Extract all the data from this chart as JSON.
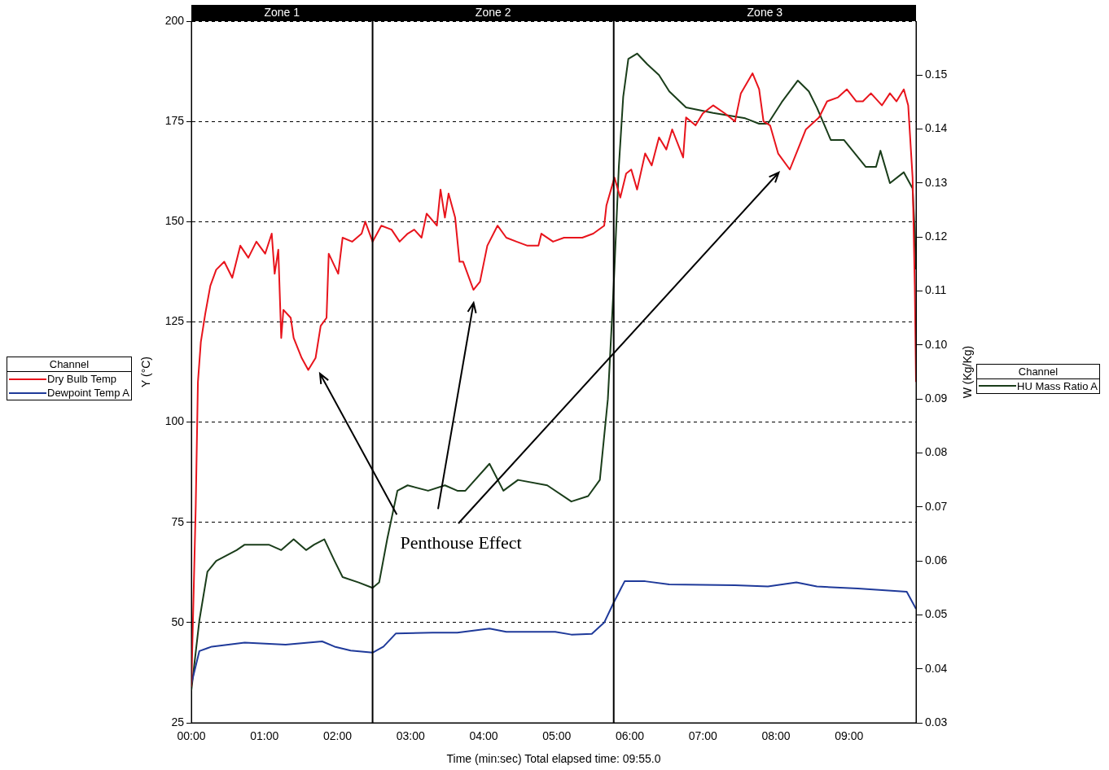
{
  "chart_data": {
    "type": "line",
    "xlabel": "Time (min:sec) Total elapsed time: 09:55.0",
    "ylabel": "Y (°C)",
    "y2label": "W (Kg/Kg)",
    "legend_title": "Channel",
    "legend": "left",
    "marker": "none",
    "grid": "y",
    "xlim": [
      0,
      9.917
    ],
    "xticks": [
      {
        "value": 0,
        "label": "00:00"
      },
      {
        "value": 1,
        "label": "01:00"
      },
      {
        "value": 2,
        "label": "02:00"
      },
      {
        "value": 3,
        "label": "03:00"
      },
      {
        "value": 4,
        "label": "04:00"
      },
      {
        "value": 5,
        "label": "05:00"
      },
      {
        "value": 6,
        "label": "06:00"
      },
      {
        "value": 7,
        "label": "07:00"
      },
      {
        "value": 8,
        "label": "08:00"
      },
      {
        "value": 9,
        "label": "09:00"
      }
    ],
    "ylim": [
      25,
      200
    ],
    "yticks": [
      25,
      50,
      75,
      100,
      125,
      150,
      175,
      200
    ],
    "y2lim": [
      0.03,
      0.16
    ],
    "y2ticks": [
      {
        "value": 0.03,
        "label": "0.03"
      },
      {
        "value": 0.04,
        "label": "0.04"
      },
      {
        "value": 0.05,
        "label": "0.05"
      },
      {
        "value": 0.06,
        "label": "0.06"
      },
      {
        "value": 0.07,
        "label": "0.07"
      },
      {
        "value": 0.08,
        "label": "0.08"
      },
      {
        "value": 0.09,
        "label": "0.09"
      },
      {
        "value": 0.1,
        "label": "0.10"
      },
      {
        "value": 0.11,
        "label": "0.11"
      },
      {
        "value": 0.12,
        "label": "0.12"
      },
      {
        "value": 0.13,
        "label": "0.13"
      },
      {
        "value": 0.14,
        "label": "0.14"
      },
      {
        "value": 0.15,
        "label": "0.15"
      }
    ],
    "ref_lines": [
      {
        "axis": "x",
        "value": 2.48,
        "color": "#000000"
      },
      {
        "axis": "x",
        "value": 5.78,
        "color": "#000000"
      }
    ],
    "annotations": [
      "Zone 1",
      "Zone 2",
      "Zone 3",
      "Penthouse Effect"
    ],
    "series": [
      {
        "name": "Dry Bulb Temp",
        "color": "#e8141c",
        "x": [
          0,
          0.06,
          0.09,
          0.13,
          0.19,
          0.26,
          0.34,
          0.45,
          0.56,
          0.67,
          0.78,
          0.89,
          1.01,
          1.1,
          1.14,
          1.19,
          1.23,
          1.26,
          1.36,
          1.4,
          1.51,
          1.6,
          1.7,
          1.77,
          1.85,
          1.88,
          2.01,
          2.07,
          2.2,
          2.33,
          2.38,
          2.48,
          2.6,
          2.74,
          2.85,
          2.96,
          3.05,
          3.15,
          3.22,
          3.36,
          3.41,
          3.47,
          3.52,
          3.61,
          3.67,
          3.72,
          3.86,
          3.95,
          4.05,
          4.19,
          4.31,
          4.45,
          4.6,
          4.75,
          4.79,
          4.95,
          5.1,
          5.35,
          5.5,
          5.65,
          5.68,
          5.79,
          5.87,
          5.95,
          6.02,
          6.1,
          6.21,
          6.3,
          6.4,
          6.5,
          6.58,
          6.73,
          6.77,
          6.9,
          7.0,
          7.14,
          7.3,
          7.44,
          7.52,
          7.68,
          7.77,
          7.83,
          7.92,
          8.03,
          8.19,
          8.3,
          8.41,
          8.59,
          8.7,
          8.85,
          8.97,
          9.1,
          9.19,
          9.3,
          9.45,
          9.56,
          9.65,
          9.75,
          9.81,
          9.87,
          9.9,
          9.917
        ],
        "values": [
          34,
          79,
          110,
          120,
          127,
          134,
          138,
          140,
          136,
          144,
          141,
          145,
          142,
          147,
          137,
          143,
          121,
          128,
          126,
          121,
          116,
          113,
          116,
          124,
          126,
          142,
          137,
          146,
          145,
          147,
          150,
          145,
          149,
          148,
          145,
          147,
          148,
          146,
          152,
          149,
          158,
          151,
          157,
          151,
          140,
          140,
          133,
          135,
          144,
          149,
          146,
          145,
          144,
          144,
          147,
          145,
          146,
          146,
          147,
          149,
          154,
          161,
          156,
          162,
          163,
          158,
          167,
          164,
          171,
          168,
          173,
          166,
          176,
          174,
          177,
          179,
          177,
          175,
          182,
          187,
          183,
          175,
          174,
          167,
          163,
          168,
          173,
          176,
          180,
          181,
          183,
          180,
          180,
          182,
          179,
          182,
          180,
          183,
          179,
          161,
          134,
          110
        ]
      },
      {
        "name": "Dewpoint Temp A",
        "color": "#1f3a9a",
        "x": [
          0,
          0.11,
          0.28,
          0.73,
          1.29,
          1.79,
          1.96,
          2.18,
          2.48,
          2.63,
          2.8,
          3.3,
          3.64,
          4.08,
          4.31,
          4.98,
          5.2,
          5.48,
          5.65,
          5.78,
          5.93,
          6.21,
          6.54,
          7.44,
          7.89,
          8.28,
          8.56,
          9.12,
          9.79,
          9.917
        ],
        "values": [
          34.7,
          42.9,
          44,
          45,
          44.5,
          45.3,
          44,
          43,
          42.5,
          44,
          47.3,
          47.5,
          47.5,
          48.5,
          47.7,
          47.7,
          47,
          47.2,
          50,
          55,
          60.3,
          60.3,
          59.5,
          59.3,
          59,
          60,
          59,
          58.5,
          57.7,
          53.4
        ]
      },
      {
        "name": "HU Mass Ratio A",
        "color": "#1a3d1a",
        "axis": "y2",
        "x": [
          0,
          0.11,
          0.22,
          0.34,
          0.62,
          0.73,
          1.06,
          1.23,
          1.4,
          1.57,
          1.68,
          1.82,
          1.96,
          2.07,
          2.29,
          2.48,
          2.57,
          2.68,
          2.82,
          2.96,
          3.24,
          3.47,
          3.64,
          3.75,
          4.08,
          4.27,
          4.47,
          4.87,
          5.2,
          5.43,
          5.59,
          5.7,
          5.78,
          5.85,
          5.91,
          5.98,
          6.1,
          6.24,
          6.4,
          6.54,
          6.77,
          7.14,
          7.58,
          7.77,
          7.89,
          8.08,
          8.3,
          8.45,
          8.56,
          8.75,
          8.93,
          9.23,
          9.37,
          9.43,
          9.56,
          9.75,
          9.87,
          9.9,
          9.917
        ],
        "values": [
          0.036,
          0.049,
          0.058,
          0.06,
          0.062,
          0.063,
          0.063,
          0.062,
          0.064,
          0.062,
          0.063,
          0.064,
          0.06,
          0.057,
          0.056,
          0.055,
          0.056,
          0.064,
          0.073,
          0.074,
          0.073,
          0.074,
          0.073,
          0.073,
          0.078,
          0.073,
          0.075,
          0.074,
          0.071,
          0.072,
          0.075,
          0.09,
          0.111,
          0.133,
          0.146,
          0.153,
          0.154,
          0.152,
          0.15,
          0.147,
          0.144,
          0.143,
          0.142,
          0.141,
          0.141,
          0.145,
          0.149,
          0.147,
          0.144,
          0.138,
          0.138,
          0.133,
          0.133,
          0.136,
          0.13,
          0.132,
          0.129,
          0.121,
          0.114
        ]
      }
    ]
  }
}
